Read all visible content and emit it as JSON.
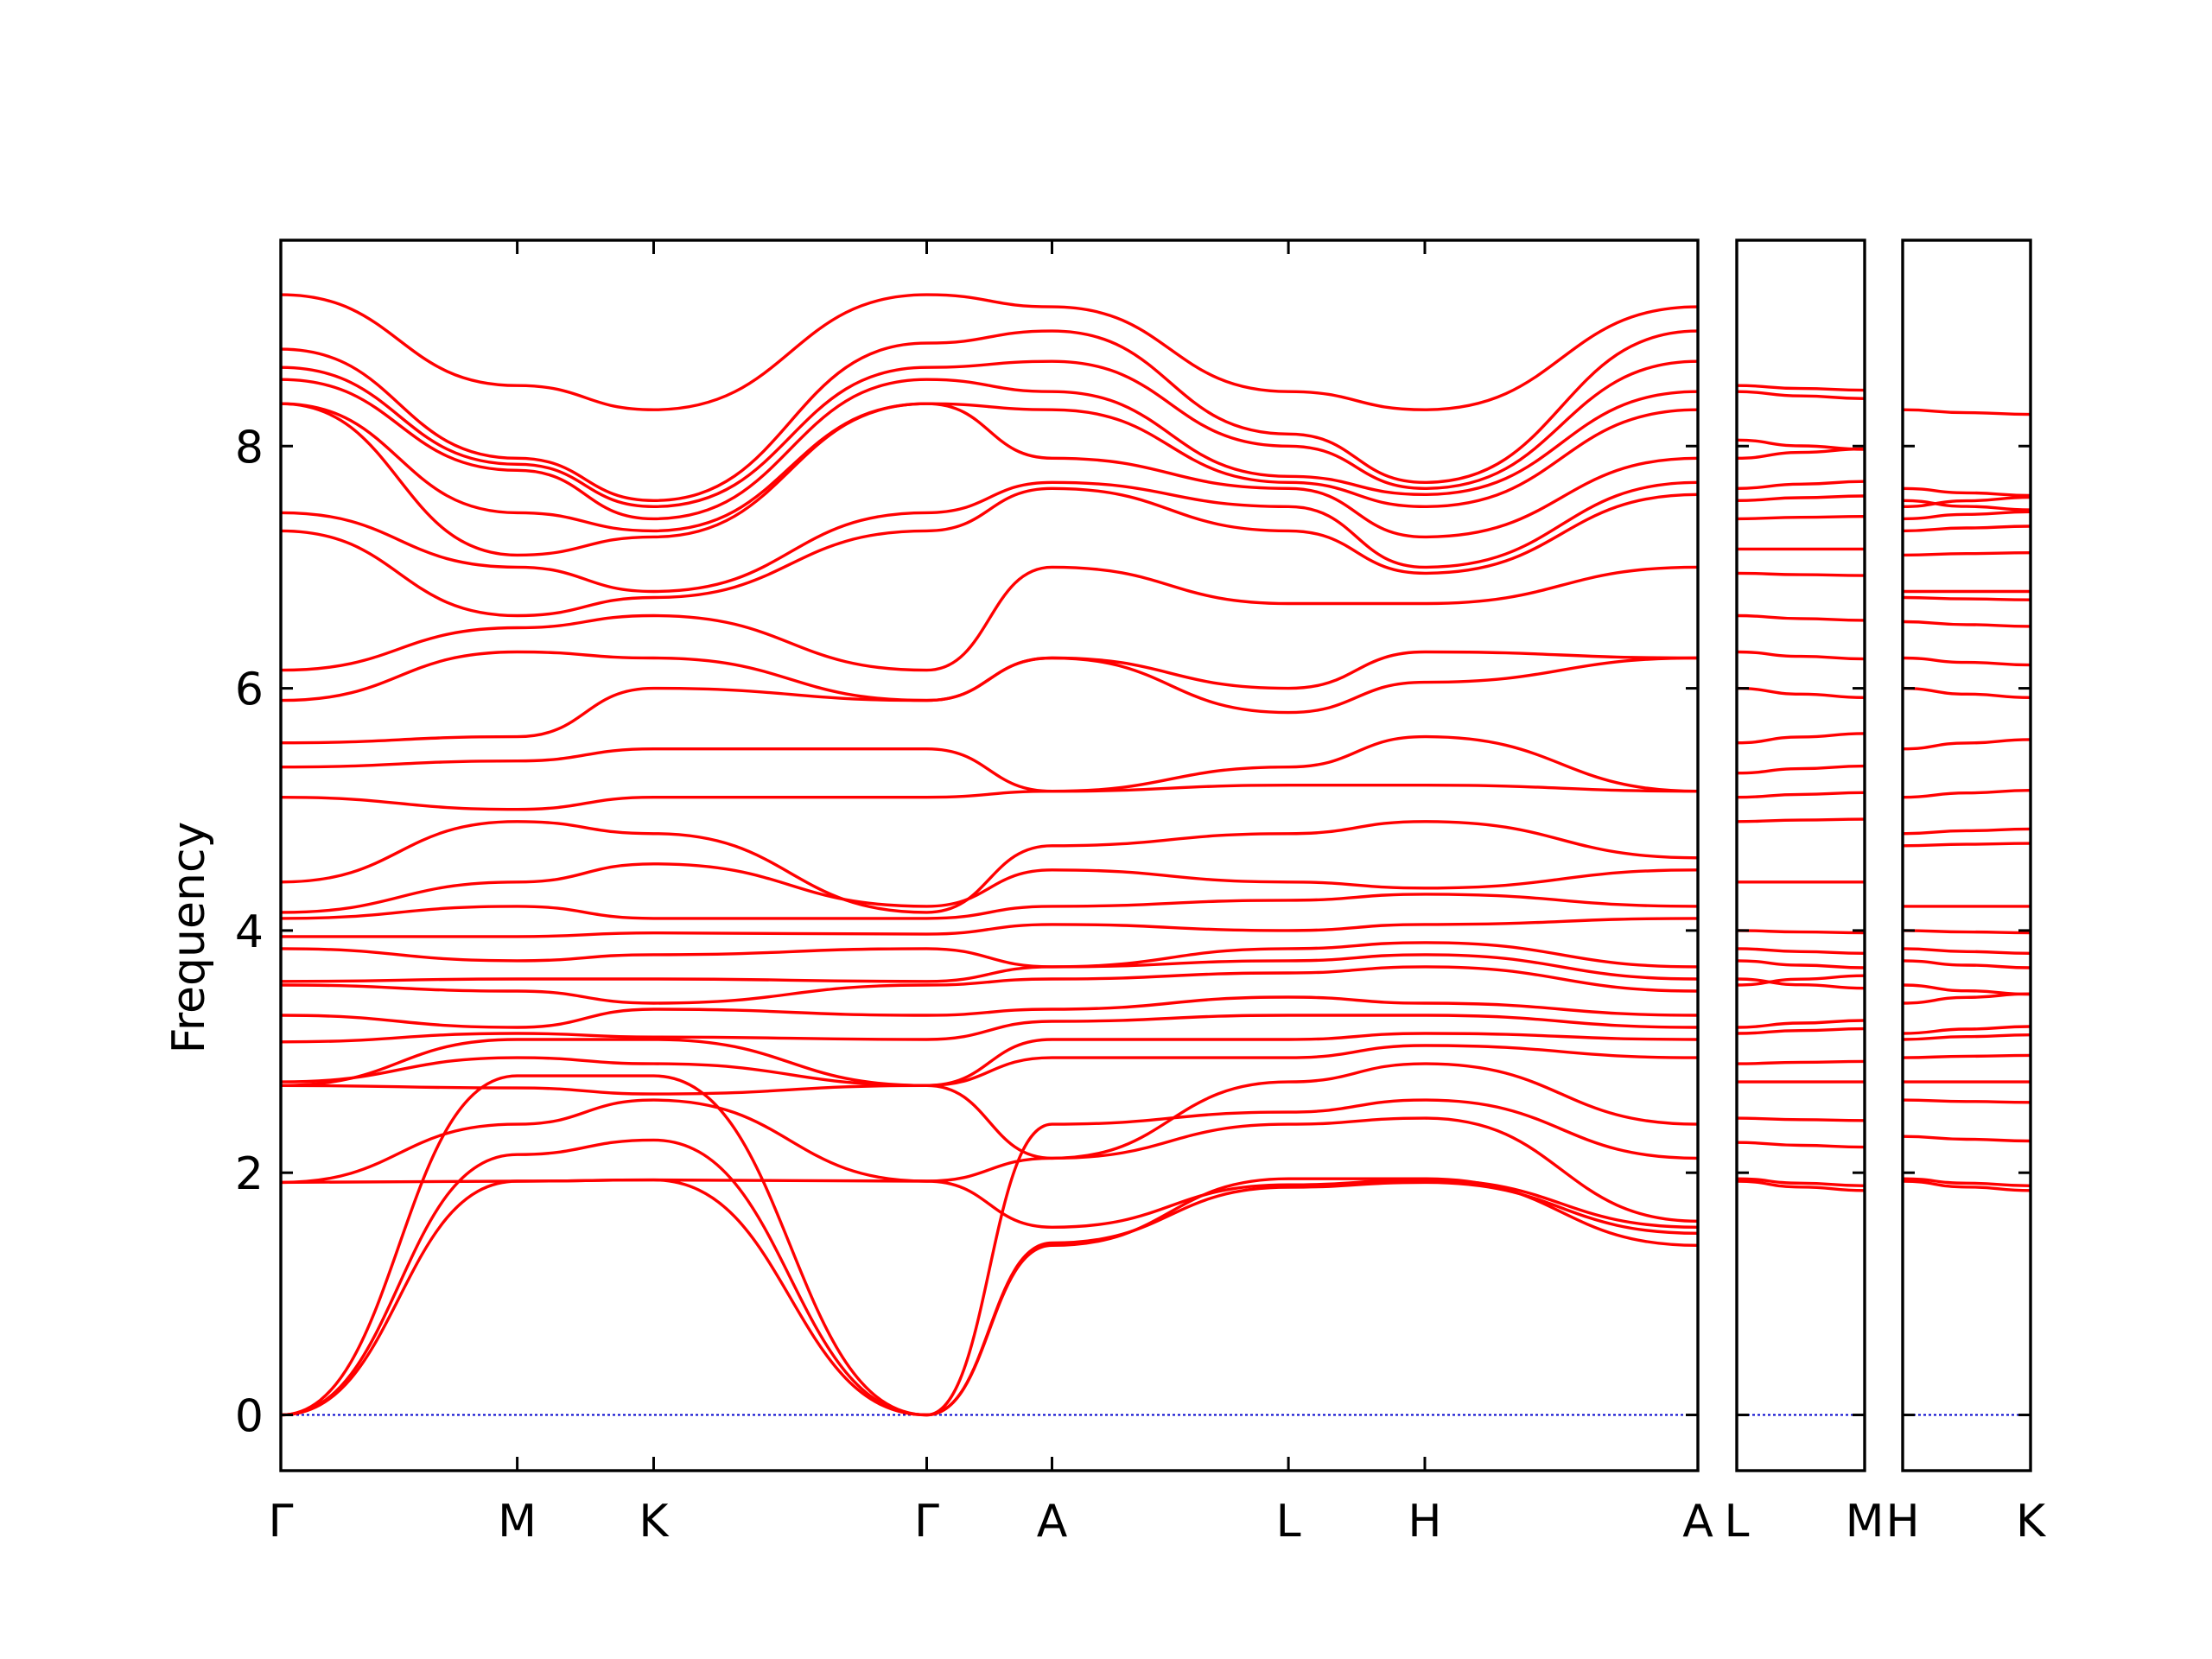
{
  "chart_data": {
    "type": "line",
    "title": "",
    "xlabel": "",
    "ylabel": "Frequency",
    "ylim": [
      -0.46,
      9.7
    ],
    "yticks": [
      0,
      2,
      4,
      6,
      8
    ],
    "ytick_labels": [
      "0",
      "2",
      "4",
      "6",
      "8"
    ],
    "grid": false,
    "zero_line_color": "#0000cc",
    "band_color": "#ff0000",
    "panels": [
      {
        "labels": [
          "Γ",
          "M",
          "K",
          "Γ",
          "A",
          "L",
          "H",
          "A"
        ],
        "segment_lengths": [
          1.0,
          0.577,
          1.155,
          0.53,
          1.0,
          0.577,
          1.155
        ],
        "bands": [
          [
            [
              0,
              1.92
            ],
            [
              1,
              1.93
            ],
            [
              1.577,
              1.94
            ],
            [
              2.732,
              1.93
            ],
            [
              3.262,
              1.55
            ],
            [
              4.262,
              1.9
            ],
            [
              4.839,
              1.94
            ],
            [
              5.994,
              1.55
            ]
          ],
          [
            [
              0,
              0.0
            ],
            [
              1,
              1.93
            ],
            [
              1.577,
              1.94
            ],
            [
              2.732,
              0.0
            ],
            [
              3.262,
              1.4
            ],
            [
              4.262,
              1.95
            ],
            [
              4.839,
              1.95
            ],
            [
              5.994,
              1.4
            ]
          ],
          [
            [
              0,
              0.0
            ],
            [
              1,
              2.15
            ],
            [
              1.577,
              2.27
            ],
            [
              2.732,
              0.0
            ],
            [
              3.262,
              1.42
            ],
            [
              4.262,
              1.88
            ],
            [
              4.839,
              1.92
            ],
            [
              5.994,
              1.5
            ]
          ],
          [
            [
              0,
              1.92
            ],
            [
              1,
              2.4
            ],
            [
              1.577,
              2.6
            ],
            [
              2.732,
              1.93
            ],
            [
              3.262,
              2.12
            ],
            [
              4.262,
              2.4
            ],
            [
              4.839,
              2.45
            ],
            [
              5.994,
              1.6
            ]
          ],
          [
            [
              0,
              0.0
            ],
            [
              1,
              2.8
            ],
            [
              1.577,
              2.8
            ],
            [
              2.732,
              0.0
            ],
            [
              3.262,
              2.4
            ],
            [
              4.262,
              2.5
            ],
            [
              4.839,
              2.6
            ],
            [
              5.994,
              2.12
            ]
          ],
          [
            [
              0,
              2.72
            ],
            [
              1,
              2.7
            ],
            [
              1.577,
              2.65
            ],
            [
              2.732,
              2.72
            ],
            [
              3.262,
              2.12
            ],
            [
              4.262,
              2.75
            ],
            [
              4.839,
              2.9
            ],
            [
              5.994,
              2.4
            ]
          ],
          [
            [
              0,
              2.75
            ],
            [
              1,
              2.95
            ],
            [
              1.577,
              2.9
            ],
            [
              2.732,
              2.72
            ],
            [
              3.262,
              2.95
            ],
            [
              4.262,
              2.95
            ],
            [
              4.839,
              3.05
            ],
            [
              5.994,
              2.95
            ]
          ],
          [
            [
              0,
              2.72
            ],
            [
              1,
              3.1
            ],
            [
              1.577,
              3.1
            ],
            [
              2.732,
              2.72
            ],
            [
              3.262,
              3.1
            ],
            [
              4.262,
              3.1
            ],
            [
              4.839,
              3.15
            ],
            [
              5.994,
              3.1
            ]
          ],
          [
            [
              0,
              3.08
            ],
            [
              1,
              3.15
            ],
            [
              1.577,
              3.12
            ],
            [
              2.732,
              3.1
            ],
            [
              3.262,
              3.25
            ],
            [
              4.262,
              3.3
            ],
            [
              4.839,
              3.3
            ],
            [
              5.994,
              3.2
            ]
          ],
          [
            [
              0,
              3.3
            ],
            [
              1,
              3.2
            ],
            [
              1.577,
              3.35
            ],
            [
              2.732,
              3.3
            ],
            [
              3.262,
              3.35
            ],
            [
              4.262,
              3.45
            ],
            [
              4.839,
              3.4
            ],
            [
              5.994,
              3.3
            ]
          ],
          [
            [
              0,
              3.55
            ],
            [
              1,
              3.5
            ],
            [
              1.577,
              3.4
            ],
            [
              2.732,
              3.55
            ],
            [
              3.262,
              3.6
            ],
            [
              4.262,
              3.65
            ],
            [
              4.839,
              3.7
            ],
            [
              5.994,
              3.5
            ]
          ],
          [
            [
              0,
              3.58
            ],
            [
              1,
              3.6
            ],
            [
              1.577,
              3.6
            ],
            [
              2.732,
              3.58
            ],
            [
              3.262,
              3.7
            ],
            [
              4.262,
              3.75
            ],
            [
              4.839,
              3.8
            ],
            [
              5.994,
              3.6
            ]
          ],
          [
            [
              0,
              3.85
            ],
            [
              1,
              3.75
            ],
            [
              1.577,
              3.8
            ],
            [
              2.732,
              3.85
            ],
            [
              3.262,
              3.7
            ],
            [
              4.262,
              3.85
            ],
            [
              4.839,
              3.9
            ],
            [
              5.994,
              3.7
            ]
          ],
          [
            [
              0,
              3.95
            ],
            [
              1,
              3.95
            ],
            [
              1.577,
              3.98
            ],
            [
              2.732,
              3.97
            ],
            [
              3.262,
              4.05
            ],
            [
              4.262,
              4.0
            ],
            [
              4.839,
              4.05
            ],
            [
              5.994,
              4.1
            ]
          ],
          [
            [
              0,
              4.1
            ],
            [
              1,
              4.2
            ],
            [
              1.577,
              4.1
            ],
            [
              2.732,
              4.1
            ],
            [
              3.262,
              4.2
            ],
            [
              4.262,
              4.25
            ],
            [
              4.839,
              4.3
            ],
            [
              5.994,
              4.2
            ]
          ],
          [
            [
              0,
              4.15
            ],
            [
              1,
              4.4
            ],
            [
              1.577,
              4.55
            ],
            [
              2.732,
              4.2
            ],
            [
              3.262,
              4.5
            ],
            [
              4.262,
              4.4
            ],
            [
              4.839,
              4.35
            ],
            [
              5.994,
              4.5
            ]
          ],
          [
            [
              0,
              4.4
            ],
            [
              1,
              4.9
            ],
            [
              1.577,
              4.8
            ],
            [
              2.732,
              4.15
            ],
            [
              3.262,
              4.7
            ],
            [
              4.262,
              4.8
            ],
            [
              4.839,
              4.9
            ],
            [
              5.994,
              4.6
            ]
          ],
          [
            [
              0,
              5.1
            ],
            [
              1,
              5.0
            ],
            [
              1.577,
              5.1
            ],
            [
              2.732,
              5.1
            ],
            [
              3.262,
              5.15
            ],
            [
              4.262,
              5.2
            ],
            [
              4.839,
              5.2
            ],
            [
              5.994,
              5.15
            ]
          ],
          [
            [
              0,
              5.35
            ],
            [
              1,
              5.4
            ],
            [
              1.577,
              5.5
            ],
            [
              2.732,
              5.5
            ],
            [
              3.262,
              5.15
            ],
            [
              4.262,
              5.35
            ],
            [
              4.839,
              5.6
            ],
            [
              5.994,
              5.15
            ]
          ],
          [
            [
              0,
              5.55
            ],
            [
              1,
              5.6
            ],
            [
              1.577,
              6.0
            ],
            [
              2.732,
              5.9
            ],
            [
              3.262,
              6.25
            ],
            [
              4.262,
              5.8
            ],
            [
              4.839,
              6.05
            ],
            [
              5.994,
              6.25
            ]
          ],
          [
            [
              0,
              5.9
            ],
            [
              1,
              6.3
            ],
            [
              1.577,
              6.25
            ],
            [
              2.732,
              5.9
            ],
            [
              3.262,
              6.25
            ],
            [
              4.262,
              6.0
            ],
            [
              4.839,
              6.3
            ],
            [
              5.994,
              6.25
            ]
          ],
          [
            [
              0,
              6.15
            ],
            [
              1,
              6.5
            ],
            [
              1.577,
              6.6
            ],
            [
              2.732,
              6.15
            ],
            [
              3.262,
              7.0
            ],
            [
              4.262,
              6.7
            ],
            [
              4.839,
              6.7
            ],
            [
              5.994,
              7.0
            ]
          ],
          [
            [
              0,
              7.3
            ],
            [
              1,
              6.6
            ],
            [
              1.577,
              6.75
            ],
            [
              2.732,
              7.3
            ],
            [
              3.262,
              7.65
            ],
            [
              4.262,
              7.3
            ],
            [
              4.839,
              6.95
            ],
            [
              5.994,
              7.6
            ]
          ],
          [
            [
              0,
              7.45
            ],
            [
              1,
              7.0
            ],
            [
              1.577,
              6.8
            ],
            [
              2.732,
              7.45
            ],
            [
              3.262,
              7.7
            ],
            [
              4.262,
              7.5
            ],
            [
              4.839,
              7.0
            ],
            [
              5.994,
              7.7
            ]
          ],
          [
            [
              0,
              8.35
            ],
            [
              1,
              7.1
            ],
            [
              1.577,
              7.25
            ],
            [
              2.732,
              8.35
            ],
            [
              3.262,
              7.9
            ],
            [
              4.262,
              7.65
            ],
            [
              4.839,
              7.25
            ],
            [
              5.994,
              7.9
            ]
          ],
          [
            [
              0,
              8.35
            ],
            [
              1,
              7.45
            ],
            [
              1.577,
              7.3
            ],
            [
              2.732,
              8.35
            ],
            [
              3.262,
              8.3
            ],
            [
              4.262,
              7.7
            ],
            [
              4.839,
              7.5
            ],
            [
              5.994,
              8.3
            ]
          ],
          [
            [
              0,
              8.55
            ],
            [
              1,
              7.8
            ],
            [
              1.577,
              7.4
            ],
            [
              2.732,
              8.55
            ],
            [
              3.262,
              8.45
            ],
            [
              4.262,
              7.75
            ],
            [
              4.839,
              7.6
            ],
            [
              5.994,
              8.45
            ]
          ],
          [
            [
              0,
              8.65
            ],
            [
              1,
              7.85
            ],
            [
              1.577,
              7.5
            ],
            [
              2.732,
              8.65
            ],
            [
              3.262,
              8.7
            ],
            [
              4.262,
              8.0
            ],
            [
              4.839,
              7.65
            ],
            [
              5.994,
              8.7
            ]
          ],
          [
            [
              0,
              8.8
            ],
            [
              1,
              7.9
            ],
            [
              1.577,
              7.55
            ],
            [
              2.732,
              8.85
            ],
            [
              3.262,
              8.95
            ],
            [
              4.262,
              8.1
            ],
            [
              4.839,
              7.7
            ],
            [
              5.994,
              8.95
            ]
          ],
          [
            [
              0,
              9.25
            ],
            [
              1,
              8.5
            ],
            [
              1.577,
              8.3
            ],
            [
              2.732,
              9.25
            ],
            [
              3.262,
              9.15
            ],
            [
              4.262,
              8.45
            ],
            [
              4.839,
              8.3
            ],
            [
              5.994,
              9.15
            ]
          ]
        ]
      },
      {
        "labels": [
          "L",
          "M"
        ],
        "segment_lengths": [
          0.53
        ],
        "levels": [
          1.93,
          1.95,
          2.25,
          2.45,
          2.75,
          2.9,
          3.15,
          3.2,
          3.55,
          3.6,
          3.75,
          3.85,
          4.0,
          4.4,
          4.9,
          5.1,
          5.3,
          5.55,
          6.0,
          6.3,
          6.6,
          6.95,
          7.15,
          7.4,
          7.55,
          7.65,
          7.9,
          8.05,
          8.45,
          8.5
        ]
      },
      {
        "labels": [
          "H",
          "K"
        ],
        "segment_lengths": [
          0.53
        ],
        "levels": [
          1.93,
          1.95,
          2.3,
          2.6,
          2.75,
          2.95,
          3.1,
          3.15,
          3.4,
          3.55,
          3.75,
          3.85,
          4.0,
          4.2,
          4.7,
          4.8,
          5.1,
          5.5,
          6.0,
          6.25,
          6.55,
          6.75,
          6.8,
          7.1,
          7.3,
          7.4,
          7.5,
          7.55,
          7.65,
          8.3
        ]
      }
    ]
  }
}
